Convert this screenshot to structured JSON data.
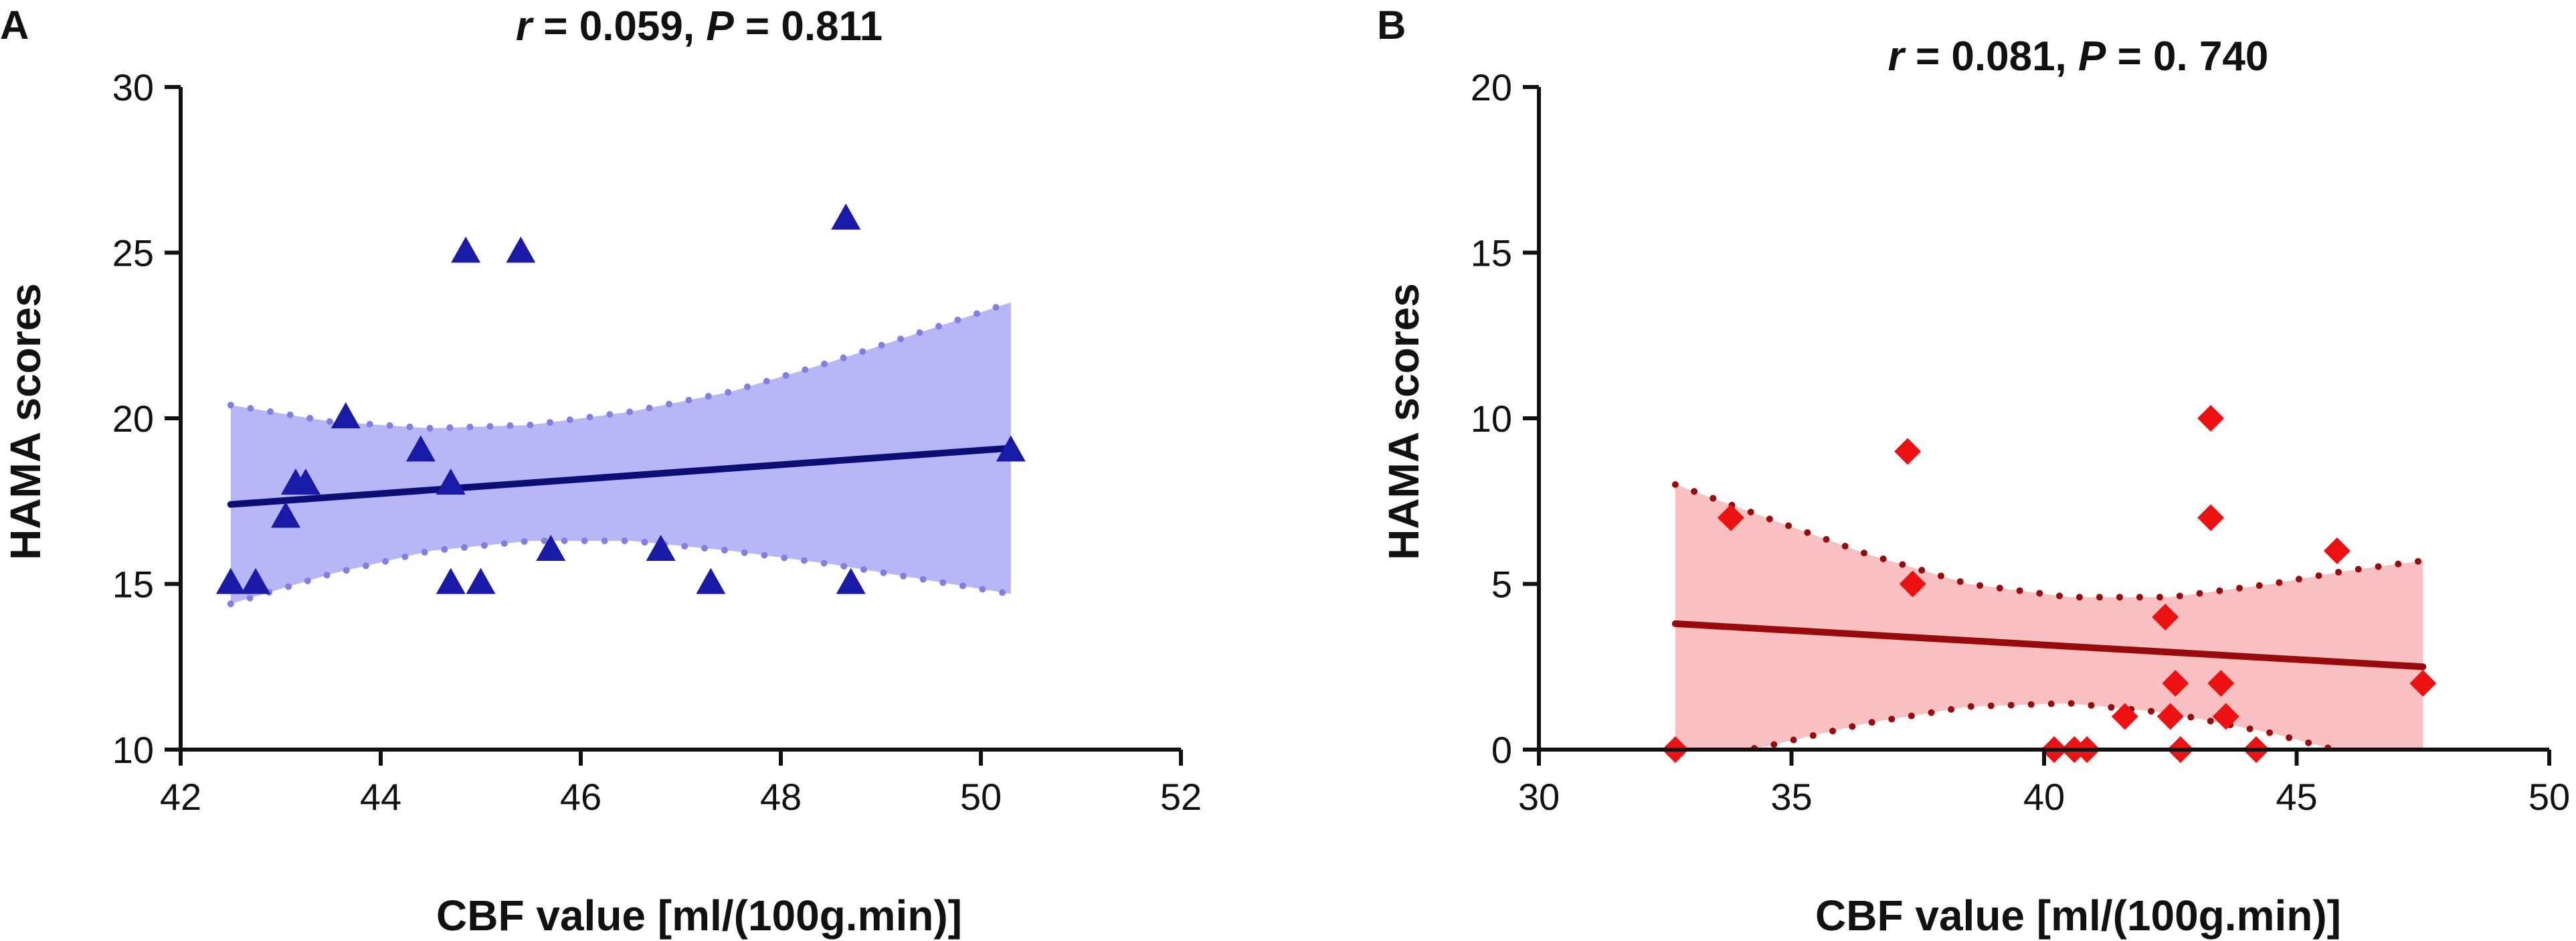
{
  "chart_data": [
    {
      "type": "scatter",
      "panel": "A",
      "title_r_label": "r",
      "title_r_value": " = 0.059, ",
      "title_p_label": "P",
      "title_p_value": " = 0.811",
      "xlabel": "CBF value [ml/(100g.min)]",
      "ylabel": "HAMA scores",
      "xlim": [
        42,
        52
      ],
      "ylim": [
        10,
        30
      ],
      "xticks": [
        42,
        44,
        46,
        48,
        50,
        52
      ],
      "yticks": [
        10,
        15,
        20,
        25,
        30
      ],
      "marker": "triangle",
      "marker_color": "#1a1aa8",
      "line_color": "#0d0d7a",
      "band_color": "#b7b7f7",
      "band_edge_color": "#8080e0",
      "fit": {
        "x0": 42.5,
        "y0": 17.4,
        "x1": 50.3,
        "y1": 19.1
      },
      "ci_lower": [
        [
          42.5,
          14.4
        ],
        [
          43.5,
          15.3
        ],
        [
          44.5,
          16.0
        ],
        [
          45.5,
          16.3
        ],
        [
          46.5,
          16.3
        ],
        [
          47.5,
          16.0
        ],
        [
          48.5,
          15.6
        ],
        [
          49.5,
          15.1
        ],
        [
          50.3,
          14.7
        ]
      ],
      "ci_upper": [
        [
          42.5,
          20.4
        ],
        [
          43.5,
          19.9
        ],
        [
          44.5,
          19.7
        ],
        [
          45.5,
          19.8
        ],
        [
          46.5,
          20.2
        ],
        [
          47.5,
          20.8
        ],
        [
          48.5,
          21.7
        ],
        [
          49.5,
          22.7
        ],
        [
          50.3,
          23.5
        ]
      ],
      "points": [
        [
          42.5,
          15
        ],
        [
          42.75,
          15
        ],
        [
          43.05,
          17
        ],
        [
          43.15,
          18
        ],
        [
          43.25,
          18
        ],
        [
          43.65,
          20
        ],
        [
          44.4,
          19
        ],
        [
          44.7,
          18
        ],
        [
          44.7,
          15
        ],
        [
          44.85,
          25
        ],
        [
          45.0,
          15
        ],
        [
          45.4,
          25
        ],
        [
          45.7,
          16
        ],
        [
          46.8,
          16
        ],
        [
          47.3,
          15
        ],
        [
          48.65,
          26
        ],
        [
          48.7,
          15
        ],
        [
          50.3,
          19
        ]
      ]
    },
    {
      "type": "scatter",
      "panel": "B",
      "title_r_label": "r",
      "title_r_value": " = 0.081, ",
      "title_p_label": "P",
      "title_p_value": " = 0. 740",
      "xlabel": "CBF value [ml/(100g.min)]",
      "ylabel": "HAMA scores",
      "xlim": [
        30,
        50
      ],
      "ylim": [
        0,
        20
      ],
      "xticks": [
        30,
        35,
        40,
        45,
        50
      ],
      "yticks": [
        0,
        5,
        10,
        15,
        20
      ],
      "marker": "diamond",
      "marker_color": "#ee1111",
      "line_color": "#9b0a0a",
      "band_color": "#f8c0c0",
      "band_edge_color": "#9b0a0a",
      "fit": {
        "x0": 32.7,
        "y0": 3.8,
        "x1": 47.5,
        "y1": 2.5
      },
      "ci_lower": [
        [
          32.7,
          -0.4
        ],
        [
          34.5,
          0.1
        ],
        [
          36.5,
          0.8
        ],
        [
          38.5,
          1.3
        ],
        [
          40.5,
          1.4
        ],
        [
          42.5,
          1.1
        ],
        [
          44.5,
          0.5
        ],
        [
          46.0,
          -0.1
        ],
        [
          47.5,
          -0.7
        ]
      ],
      "ci_upper": [
        [
          32.7,
          8.0
        ],
        [
          34.5,
          7.0
        ],
        [
          36.5,
          5.9
        ],
        [
          38.5,
          5.0
        ],
        [
          40.5,
          4.6
        ],
        [
          42.5,
          4.6
        ],
        [
          44.5,
          5.0
        ],
        [
          46.0,
          5.4
        ],
        [
          47.5,
          5.7
        ]
      ],
      "points": [
        [
          32.7,
          0
        ],
        [
          33.8,
          7
        ],
        [
          37.3,
          9
        ],
        [
          37.4,
          5
        ],
        [
          40.2,
          0
        ],
        [
          40.6,
          0
        ],
        [
          40.85,
          0
        ],
        [
          41.6,
          1
        ],
        [
          42.4,
          4
        ],
        [
          42.5,
          1
        ],
        [
          42.6,
          2
        ],
        [
          42.7,
          0
        ],
        [
          43.3,
          7
        ],
        [
          43.3,
          10
        ],
        [
          43.5,
          2
        ],
        [
          43.6,
          1
        ],
        [
          44.2,
          0
        ],
        [
          45.8,
          6
        ],
        [
          47.5,
          2
        ]
      ]
    }
  ]
}
